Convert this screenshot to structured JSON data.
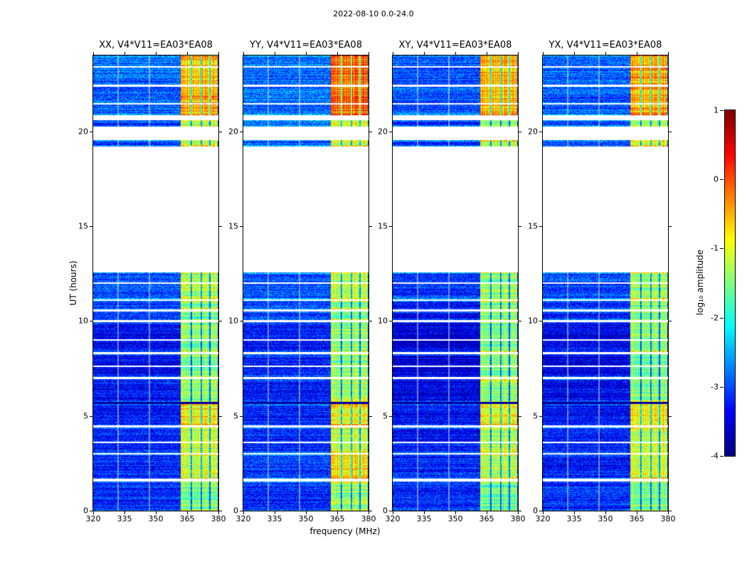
{
  "figure": {
    "title": "2022-08-10 0.0-24.0",
    "background": "#ffffff"
  },
  "chart_data": {
    "type": "heatmap",
    "title": "2022-08-10 0.0-24.0",
    "xlabel": "frequency (MHz)",
    "ylabel": "UT (hours)",
    "xlim": [
      320,
      380
    ],
    "ylim": [
      0,
      24
    ],
    "x_ticks": [
      320,
      335,
      350,
      365,
      380
    ],
    "y_ticks": [
      0,
      5,
      10,
      15,
      20
    ],
    "colormap": "jet",
    "grid": false,
    "panels": [
      {
        "title": "XX, V4*V11=EA03*EA08"
      },
      {
        "title": "YY, V4*V11=EA03*EA08"
      },
      {
        "title": "XY, V4*V11=EA03*EA08"
      },
      {
        "title": "YX, V4*V11=EA03*EA08"
      }
    ],
    "colorbar": {
      "label": "log₁₀ amplitude",
      "vmin": -4,
      "vmax": 1,
      "ticks": [
        1,
        0,
        -1,
        -2,
        -3,
        -4
      ],
      "position": "right"
    },
    "time_segments": [
      {
        "t0": 0.0,
        "t1": 1.55,
        "base": [
          -2.4,
          -2.4,
          -2.45,
          -2.4
        ],
        "rfi": [
          -0.5,
          -0.4,
          -0.6,
          -0.5
        ]
      },
      {
        "t0": 1.7,
        "t1": 2.95,
        "base": [
          -2.45,
          -2.4,
          -2.5,
          -2.45
        ],
        "rfi": [
          -0.1,
          0.2,
          -0.2,
          -0.1
        ]
      },
      {
        "t0": 3.05,
        "t1": 4.4,
        "base": [
          -2.45,
          -2.45,
          -2.55,
          -2.5
        ],
        "rfi": [
          -0.1,
          -0.1,
          -0.2,
          -0.2
        ],
        "subgaps": [
          [
            3.55,
            3.62
          ]
        ]
      },
      {
        "t0": 4.5,
        "t1": 5.62,
        "base": [
          -2.5,
          -2.45,
          -2.6,
          -2.55
        ],
        "rfi": [
          0.2,
          0.1,
          0.1,
          0.1
        ]
      },
      {
        "t0": 5.75,
        "t1": 6.95,
        "base": [
          -2.55,
          -2.5,
          -2.75,
          -2.65
        ],
        "rfi": [
          -0.4,
          -0.3,
          -0.4,
          -0.4
        ]
      },
      {
        "t0": 7.05,
        "t1": 8.25,
        "base": [
          -2.6,
          -2.5,
          -2.8,
          -2.7
        ],
        "rfi": [
          -0.5,
          -0.4,
          -0.5,
          -0.5
        ],
        "subgaps": [
          [
            7.58,
            7.64
          ]
        ]
      },
      {
        "t0": 8.35,
        "t1": 9.95,
        "base": [
          -2.6,
          -2.5,
          -2.85,
          -2.7
        ],
        "rfi": [
          -0.5,
          -0.3,
          -0.5,
          -0.4
        ],
        "subgaps": [
          [
            8.95,
            9.02
          ]
        ]
      },
      {
        "t0": 10.05,
        "t1": 10.5,
        "base": [
          -2.4,
          -2.35,
          -2.6,
          -2.5
        ],
        "rfi": [
          -0.6,
          -0.5,
          -0.6,
          -0.6
        ]
      },
      {
        "t0": 10.6,
        "t1": 11.05,
        "base": [
          -2.35,
          -2.3,
          -2.5,
          -2.45
        ],
        "rfi": [
          -0.5,
          -0.4,
          -0.5,
          -0.5
        ]
      },
      {
        "t0": 11.15,
        "t1": 12.55,
        "base": [
          -2.2,
          -2.15,
          -2.35,
          -2.3
        ],
        "rfi": [
          -0.3,
          -0.2,
          -0.4,
          -0.3
        ],
        "subgaps": [
          [
            11.95,
            12.02
          ]
        ]
      },
      {
        "t0": 19.2,
        "t1": 19.55,
        "base": [
          -2.3,
          -2.25,
          -2.4,
          -2.35
        ],
        "rfi": [
          -0.2,
          0.0,
          -0.3,
          -0.2
        ]
      },
      {
        "t0": 20.25,
        "t1": 20.6,
        "base": [
          -2.3,
          -2.25,
          -2.4,
          -2.35
        ],
        "rfi": [
          -0.3,
          -0.2,
          -0.4,
          -0.3
        ]
      },
      {
        "t0": 20.85,
        "t1": 24.0,
        "base": [
          -2.1,
          -2.05,
          -2.2,
          -2.15
        ],
        "rfi": [
          0.5,
          0.9,
          0.5,
          0.55
        ],
        "subgaps": [
          [
            21.4,
            21.5
          ],
          [
            22.35,
            22.45
          ],
          [
            23.35,
            23.42
          ]
        ]
      }
    ],
    "rfi_band": {
      "f0": 361.8,
      "f1": 379.6,
      "notches": [
        366.9,
        371.9,
        375.9
      ],
      "notch_halfwidth": 0.35
    },
    "flagged_channels": [
      332,
      347
    ],
    "dark_rows": [
      5.68
    ]
  }
}
